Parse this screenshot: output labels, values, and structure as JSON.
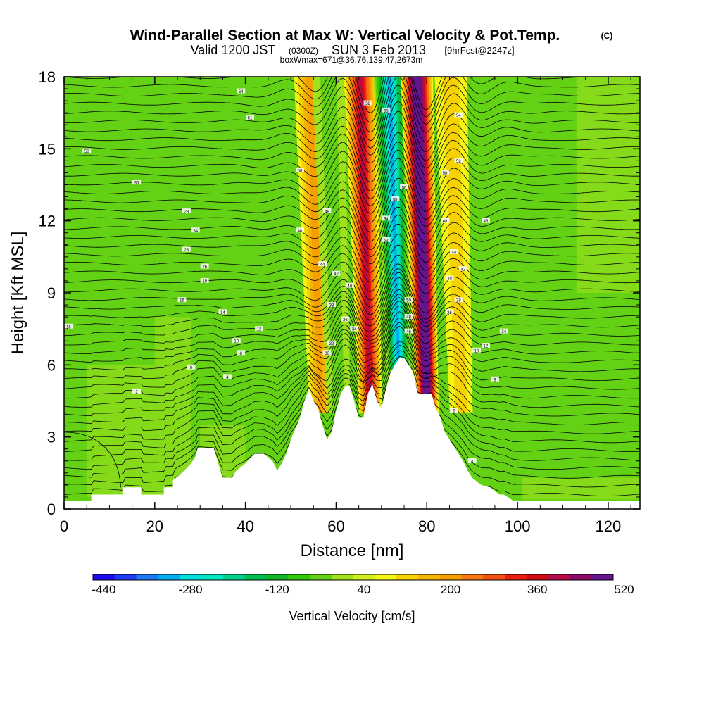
{
  "chart_data": {
    "type": "heatmap",
    "title": "Wind-Parallel Section at Max W: Vertical Velocity & Pot.Temp.",
    "title_mark": "(C)",
    "subtitle": {
      "valid_prefix": "Valid 1200 JST",
      "utc": "(0300Z)",
      "date": "SUN 3 Feb 2013",
      "forecast": "[9hrFcst@2247z]"
    },
    "box_info": "boxWmax=671@36.76,139.47,2673m",
    "xlabel": "Distance [nm]",
    "ylabel": "Height [Kft MSL]",
    "xlim": [
      0,
      127
    ],
    "ylim": [
      0,
      18
    ],
    "x_ticks": [
      "0",
      "20",
      "40",
      "60",
      "80",
      "100",
      "120"
    ],
    "y_ticks": [
      "0",
      "3",
      "6",
      "9",
      "12",
      "15",
      "18"
    ],
    "colorbar": {
      "label": "Vertical Velocity [cm/s]",
      "tick_labels": [
        "-440",
        "-280",
        "-120",
        "40",
        "200",
        "360",
        "520"
      ],
      "colors": [
        "#1e0af0",
        "#1e3cf5",
        "#1e78f5",
        "#00aaf0",
        "#00dcdc",
        "#00e6be",
        "#00d28c",
        "#00be50",
        "#14b428",
        "#32c80a",
        "#64d214",
        "#a0e11e",
        "#d2f01e",
        "#f5f514",
        "#f5d200",
        "#f5b400",
        "#f5a000",
        "#f57814",
        "#f55014",
        "#eb1e14",
        "#d20a14",
        "#b40a46",
        "#8c0a64",
        "#64148c"
      ]
    },
    "vertical_velocity_bands": [
      {
        "x_center": 56,
        "value": 190
      },
      {
        "x_center": 60,
        "value": -60
      },
      {
        "x_center": 67,
        "value": 380
      },
      {
        "x_center": 73.5,
        "value": -330
      },
      {
        "x_center": 79.5,
        "value": 560
      },
      {
        "x_center": 87,
        "value": 90
      }
    ],
    "terrain_profile": [
      [
        0,
        0.35
      ],
      [
        6,
        0.35
      ],
      [
        6,
        0.6
      ],
      [
        13,
        0.6
      ],
      [
        13,
        0.9
      ],
      [
        17,
        0.9
      ],
      [
        17,
        0.6
      ],
      [
        22,
        0.6
      ],
      [
        22,
        0.9
      ],
      [
        24,
        0.9
      ],
      [
        24,
        1.2
      ],
      [
        26,
        1.5
      ],
      [
        28,
        1.9
      ],
      [
        29,
        2.2
      ],
      [
        29.5,
        2.55
      ],
      [
        33,
        2.55
      ],
      [
        34,
        1.9
      ],
      [
        35,
        1.3
      ],
      [
        37,
        1.3
      ],
      [
        38,
        1.6
      ],
      [
        40,
        1.9
      ],
      [
        42,
        2.3
      ],
      [
        44,
        2.3
      ],
      [
        46,
        2.0
      ],
      [
        47,
        1.6
      ],
      [
        48,
        1.9
      ],
      [
        49,
        2.3
      ],
      [
        50,
        2.9
      ],
      [
        52,
        3.8
      ],
      [
        53,
        4.5
      ],
      [
        54,
        5.0
      ],
      [
        55,
        4.5
      ],
      [
        56,
        4.2
      ],
      [
        57,
        3.5
      ],
      [
        58,
        2.9
      ],
      [
        59,
        3.2
      ],
      [
        60,
        4.1
      ],
      [
        61,
        4.8
      ],
      [
        62,
        5.1
      ],
      [
        63,
        5.1
      ],
      [
        64,
        4.5
      ],
      [
        65,
        3.8
      ],
      [
        66,
        3.8
      ],
      [
        67,
        4.8
      ],
      [
        68,
        5.2
      ],
      [
        69,
        4.5
      ],
      [
        70,
        4.2
      ],
      [
        71,
        5.0
      ],
      [
        72,
        5.7
      ],
      [
        73,
        6.0
      ],
      [
        74,
        6.3
      ],
      [
        75,
        6.3
      ],
      [
        76,
        6.0
      ],
      [
        77,
        5.7
      ],
      [
        78,
        4.8
      ],
      [
        80,
        4.8
      ],
      [
        81,
        4.8
      ],
      [
        82,
        4.2
      ],
      [
        83,
        3.8
      ],
      [
        84,
        3.2
      ],
      [
        85,
        2.9
      ],
      [
        86,
        2.6
      ],
      [
        87,
        2.3
      ],
      [
        88,
        2.0
      ],
      [
        89,
        1.6
      ],
      [
        90,
        1.3
      ],
      [
        92,
        1.0
      ],
      [
        94,
        0.9
      ],
      [
        96,
        0.6
      ],
      [
        97,
        0.6
      ],
      [
        99,
        0.35
      ],
      [
        127,
        0.35
      ]
    ],
    "contour_labels": [
      {
        "x": 39,
        "y": 17.4,
        "text": "54"
      },
      {
        "x": 41,
        "y": 16.3,
        "text": "51"
      },
      {
        "x": 5,
        "y": 14.9,
        "text": "50"
      },
      {
        "x": 16,
        "y": 13.6,
        "text": "36"
      },
      {
        "x": 27,
        "y": 12.4,
        "text": "28"
      },
      {
        "x": 29,
        "y": 11.6,
        "text": "34"
      },
      {
        "x": 27,
        "y": 10.8,
        "text": "28"
      },
      {
        "x": 31,
        "y": 10.1,
        "text": "26"
      },
      {
        "x": 31,
        "y": 9.5,
        "text": "18"
      },
      {
        "x": 26,
        "y": 8.7,
        "text": "16"
      },
      {
        "x": 35,
        "y": 8.2,
        "text": "14"
      },
      {
        "x": 1,
        "y": 7.6,
        "text": "16"
      },
      {
        "x": 43,
        "y": 7.5,
        "text": "12"
      },
      {
        "x": 38,
        "y": 7.0,
        "text": "10"
      },
      {
        "x": 39,
        "y": 6.5,
        "text": "8"
      },
      {
        "x": 28,
        "y": 5.9,
        "text": "6"
      },
      {
        "x": 36,
        "y": 5.5,
        "text": "4"
      },
      {
        "x": 16,
        "y": 4.9,
        "text": "2"
      },
      {
        "x": 52,
        "y": 14.1,
        "text": "50"
      },
      {
        "x": 58,
        "y": 12.4,
        "text": "48"
      },
      {
        "x": 52,
        "y": 11.6,
        "text": "46"
      },
      {
        "x": 57,
        "y": 10.2,
        "text": "44"
      },
      {
        "x": 60,
        "y": 9.8,
        "text": "42"
      },
      {
        "x": 63,
        "y": 9.3,
        "text": "40"
      },
      {
        "x": 59,
        "y": 8.5,
        "text": "38"
      },
      {
        "x": 62,
        "y": 7.9,
        "text": "36"
      },
      {
        "x": 64,
        "y": 7.5,
        "text": "34"
      },
      {
        "x": 59,
        "y": 6.9,
        "text": "32"
      },
      {
        "x": 58,
        "y": 6.5,
        "text": "30"
      },
      {
        "x": 67,
        "y": 16.9,
        "text": "58"
      },
      {
        "x": 71,
        "y": 16.6,
        "text": "58"
      },
      {
        "x": 75,
        "y": 13.4,
        "text": "56"
      },
      {
        "x": 73,
        "y": 12.9,
        "text": "55"
      },
      {
        "x": 71,
        "y": 12.1,
        "text": "54"
      },
      {
        "x": 71,
        "y": 11.2,
        "text": "52"
      },
      {
        "x": 76,
        "y": 8.7,
        "text": "50"
      },
      {
        "x": 76,
        "y": 8.0,
        "text": "48"
      },
      {
        "x": 76,
        "y": 7.4,
        "text": "46"
      },
      {
        "x": 87,
        "y": 16.4,
        "text": "54"
      },
      {
        "x": 87,
        "y": 14.5,
        "text": "52"
      },
      {
        "x": 84,
        "y": 14.0,
        "text": "50"
      },
      {
        "x": 84,
        "y": 12.0,
        "text": "48"
      },
      {
        "x": 93,
        "y": 12.0,
        "text": "46"
      },
      {
        "x": 86,
        "y": 10.7,
        "text": "44"
      },
      {
        "x": 88,
        "y": 10.0,
        "text": "42"
      },
      {
        "x": 85,
        "y": 9.6,
        "text": "40"
      },
      {
        "x": 87,
        "y": 8.7,
        "text": "38"
      },
      {
        "x": 85,
        "y": 8.2,
        "text": "36"
      },
      {
        "x": 97,
        "y": 7.4,
        "text": "34"
      },
      {
        "x": 91,
        "y": 6.6,
        "text": "10"
      },
      {
        "x": 93,
        "y": 6.8,
        "text": "12"
      },
      {
        "x": 95,
        "y": 5.4,
        "text": "8"
      },
      {
        "x": 86,
        "y": 4.1,
        "text": "6"
      },
      {
        "x": 90,
        "y": 2.0,
        "text": "4"
      }
    ]
  }
}
